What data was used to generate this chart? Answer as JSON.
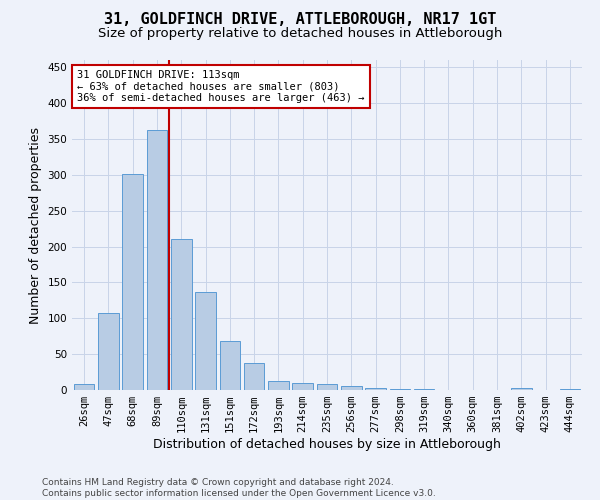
{
  "title": "31, GOLDFINCH DRIVE, ATTLEBOROUGH, NR17 1GT",
  "subtitle": "Size of property relative to detached houses in Attleborough",
  "xlabel": "Distribution of detached houses by size in Attleborough",
  "ylabel": "Number of detached properties",
  "categories": [
    "26sqm",
    "47sqm",
    "68sqm",
    "89sqm",
    "110sqm",
    "131sqm",
    "151sqm",
    "172sqm",
    "193sqm",
    "214sqm",
    "235sqm",
    "256sqm",
    "277sqm",
    "298sqm",
    "319sqm",
    "340sqm",
    "360sqm",
    "381sqm",
    "402sqm",
    "423sqm",
    "444sqm"
  ],
  "values": [
    8,
    108,
    301,
    362,
    211,
    136,
    68,
    38,
    13,
    10,
    9,
    6,
    3,
    2,
    1,
    0,
    0,
    0,
    3,
    0,
    2
  ],
  "bar_color": "#b8cce4",
  "bar_edge_color": "#5b9bd5",
  "grid_color": "#c8d4e8",
  "reference_line_color": "#c00000",
  "annotation_text": "31 GOLDFINCH DRIVE: 113sqm\n← 63% of detached houses are smaller (803)\n36% of semi-detached houses are larger (463) →",
  "annotation_box_color": "#ffffff",
  "annotation_box_edge_color": "#c00000",
  "ylim": [
    0,
    460
  ],
  "yticks": [
    0,
    50,
    100,
    150,
    200,
    250,
    300,
    350,
    400,
    450
  ],
  "footer_line1": "Contains HM Land Registry data © Crown copyright and database right 2024.",
  "footer_line2": "Contains public sector information licensed under the Open Government Licence v3.0.",
  "background_color": "#eef2fa",
  "title_fontsize": 11,
  "subtitle_fontsize": 9.5,
  "tick_fontsize": 7.5,
  "label_fontsize": 9,
  "footer_fontsize": 6.5
}
